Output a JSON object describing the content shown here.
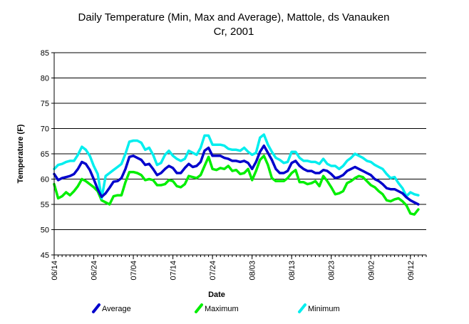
{
  "chart_data": {
    "type": "line",
    "title_lines": [
      "Daily Temperature (Min, Max and Average), Mattole, ds Vanauken",
      "Cr, 2001"
    ],
    "xlabel": "Date",
    "ylabel": "Temperature (F)",
    "ylim": [
      45,
      85
    ],
    "yticks": [
      45,
      50,
      55,
      60,
      65,
      70,
      75,
      80,
      85
    ],
    "grid": "horizontal",
    "legend_position": "bottom",
    "xlim": [
      "2001-06-14",
      "2001-09-16"
    ],
    "xticks": [
      {
        "date": "2001-06-14",
        "label": "06/14"
      },
      {
        "date": "2001-06-24",
        "label": "06/24"
      },
      {
        "date": "2001-07-04",
        "label": "07/04"
      },
      {
        "date": "2001-07-14",
        "label": "07/14"
      },
      {
        "date": "2001-07-24",
        "label": "07/24"
      },
      {
        "date": "2001-08-03",
        "label": "08/03"
      },
      {
        "date": "2001-08-13",
        "label": "08/13"
      },
      {
        "date": "2001-08-23",
        "label": "08/23"
      },
      {
        "date": "2001-09-02",
        "label": "09/02"
      },
      {
        "date": "2001-09-12",
        "label": "09/12"
      }
    ],
    "x": [
      "2001-06-14",
      "2001-06-15",
      "2001-06-16",
      "2001-06-17",
      "2001-06-18",
      "2001-06-19",
      "2001-06-20",
      "2001-06-21",
      "2001-06-22",
      "2001-06-23",
      "2001-06-24",
      "2001-06-25",
      "2001-06-26",
      "2001-06-27",
      "2001-06-28",
      "2001-06-29",
      "2001-06-30",
      "2001-07-01",
      "2001-07-02",
      "2001-07-03",
      "2001-07-04",
      "2001-07-05",
      "2001-07-06",
      "2001-07-07",
      "2001-07-08",
      "2001-07-09",
      "2001-07-10",
      "2001-07-11",
      "2001-07-12",
      "2001-07-13",
      "2001-07-14",
      "2001-07-15",
      "2001-07-16",
      "2001-07-17",
      "2001-07-18",
      "2001-07-19",
      "2001-07-20",
      "2001-07-21",
      "2001-07-22",
      "2001-07-23",
      "2001-07-24",
      "2001-07-25",
      "2001-07-26",
      "2001-07-27",
      "2001-07-28",
      "2001-07-29",
      "2001-07-30",
      "2001-07-31",
      "2001-08-01",
      "2001-08-02",
      "2001-08-03",
      "2001-08-04",
      "2001-08-05",
      "2001-08-06",
      "2001-08-07",
      "2001-08-08",
      "2001-08-09",
      "2001-08-10",
      "2001-08-11",
      "2001-08-12",
      "2001-08-13",
      "2001-08-14",
      "2001-08-15",
      "2001-08-16",
      "2001-08-17",
      "2001-08-18",
      "2001-08-19",
      "2001-08-20",
      "2001-08-21",
      "2001-08-22",
      "2001-08-23",
      "2001-08-24",
      "2001-08-25",
      "2001-08-26",
      "2001-08-27",
      "2001-08-28",
      "2001-08-29",
      "2001-08-30",
      "2001-08-31",
      "2001-09-01",
      "2001-09-02",
      "2001-09-03",
      "2001-09-04",
      "2001-09-05",
      "2001-09-06",
      "2001-09-07",
      "2001-09-08",
      "2001-09-09",
      "2001-09-10",
      "2001-09-11",
      "2001-09-12",
      "2001-09-13",
      "2001-09-14"
    ],
    "series": [
      {
        "name": "Average",
        "color": "#0000cc",
        "values": [
          61.0,
          59.8,
          60.2,
          60.4,
          60.6,
          61.0,
          62.0,
          63.4,
          63.0,
          61.8,
          60.0,
          58.0,
          56.5,
          57.2,
          58.3,
          59.5,
          59.6,
          60.2,
          62.0,
          64.4,
          64.6,
          64.2,
          63.8,
          62.8,
          63.0,
          62.0,
          60.8,
          61.2,
          62.0,
          62.6,
          62.2,
          61.2,
          61.2,
          62.2,
          63.0,
          62.4,
          62.6,
          63.4,
          65.6,
          66.2,
          64.6,
          64.6,
          64.6,
          64.2,
          64.0,
          63.6,
          63.6,
          63.4,
          63.6,
          63.2,
          62.0,
          63.4,
          65.4,
          66.6,
          65.2,
          63.8,
          62.0,
          61.2,
          61.2,
          61.6,
          63.2,
          63.6,
          62.6,
          62.0,
          61.6,
          61.6,
          61.2,
          61.2,
          61.8,
          61.6,
          61.0,
          60.2,
          60.4,
          60.8,
          61.6,
          62.0,
          62.4,
          62.0,
          61.6,
          61.2,
          60.8,
          60.0,
          59.6,
          59.0,
          58.2,
          58.0,
          58.0,
          57.6,
          57.2,
          56.4,
          55.8,
          55.4,
          55.0
        ]
      },
      {
        "name": "Maximum",
        "color": "#00ee00",
        "values": [
          59.0,
          56.2,
          56.6,
          57.4,
          56.8,
          57.6,
          58.6,
          60.0,
          59.6,
          59.0,
          58.4,
          57.6,
          55.8,
          55.4,
          55.0,
          56.6,
          56.8,
          56.8,
          59.4,
          61.4,
          61.4,
          61.2,
          60.8,
          59.8,
          60.0,
          59.8,
          58.8,
          58.8,
          59.0,
          59.8,
          59.6,
          58.6,
          58.4,
          59.0,
          60.6,
          60.4,
          60.2,
          60.8,
          62.6,
          64.4,
          62.0,
          61.8,
          62.2,
          62.0,
          62.6,
          61.6,
          61.8,
          61.0,
          61.2,
          62.0,
          59.8,
          61.6,
          63.8,
          64.6,
          62.8,
          60.2,
          59.6,
          59.6,
          59.6,
          60.2,
          61.2,
          61.8,
          59.4,
          59.4,
          59.0,
          59.2,
          59.6,
          58.6,
          60.6,
          59.6,
          58.4,
          57.0,
          57.2,
          57.6,
          59.2,
          59.6,
          60.2,
          60.6,
          60.4,
          59.6,
          58.8,
          58.4,
          57.6,
          57.0,
          55.8,
          55.6,
          56.0,
          56.2,
          55.6,
          54.8,
          53.2,
          53.0,
          54.0
        ]
      },
      {
        "name": "Minimum",
        "color": "#00eeee",
        "values": [
          62.0,
          62.8,
          63.0,
          63.4,
          63.6,
          63.6,
          64.8,
          66.4,
          65.8,
          64.6,
          62.6,
          61.0,
          56.2,
          60.6,
          61.2,
          61.8,
          62.4,
          63.0,
          65.0,
          67.4,
          67.6,
          67.6,
          67.2,
          65.8,
          66.2,
          64.8,
          62.8,
          63.2,
          64.8,
          65.6,
          64.6,
          64.0,
          63.6,
          64.0,
          65.6,
          65.2,
          64.8,
          66.2,
          68.6,
          68.6,
          66.8,
          66.8,
          66.8,
          66.6,
          66.0,
          65.8,
          65.8,
          65.6,
          66.2,
          65.4,
          64.8,
          65.2,
          68.2,
          68.8,
          66.8,
          65.4,
          64.2,
          63.8,
          63.2,
          63.4,
          65.4,
          65.4,
          64.2,
          63.6,
          63.6,
          63.4,
          63.4,
          63.0,
          64.0,
          63.0,
          62.6,
          62.6,
          62.0,
          62.6,
          63.6,
          64.2,
          65.0,
          64.6,
          64.2,
          63.6,
          63.4,
          62.8,
          62.4,
          62.0,
          61.0,
          60.2,
          60.4,
          59.2,
          58.2,
          56.6,
          57.4,
          57.0,
          56.8
        ]
      }
    ]
  }
}
